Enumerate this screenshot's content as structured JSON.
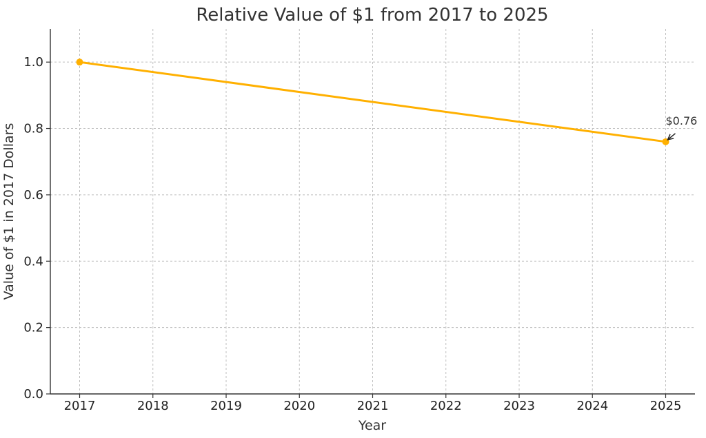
{
  "chart_data": {
    "type": "line",
    "title": "Relative Value of $1 from 2017 to 2025",
    "xlabel": "Year",
    "ylabel": "Value of $1 in 2017 Dollars",
    "x": [
      2017,
      2025
    ],
    "series": [
      {
        "values": [
          1.0,
          0.76
        ],
        "color": "#ffb000",
        "marker": "circle"
      }
    ],
    "xlim": [
      2016.6,
      2025.4
    ],
    "ylim": [
      0.0,
      1.1
    ],
    "xticks": [
      2017,
      2018,
      2019,
      2020,
      2021,
      2022,
      2023,
      2024,
      2025
    ],
    "xtick_labels": [
      "2017",
      "2018",
      "2019",
      "2020",
      "2021",
      "2022",
      "2023",
      "2024",
      "2025"
    ],
    "yticks": [
      0.0,
      0.2,
      0.4,
      0.6,
      0.8,
      1.0
    ],
    "ytick_labels": [
      "0.0",
      "0.2",
      "0.4",
      "0.6",
      "0.8",
      "1.0"
    ],
    "grid": true,
    "annotations": [
      {
        "text": "$0.76",
        "x": 2025,
        "y": 0.76,
        "arrow": true
      }
    ]
  }
}
